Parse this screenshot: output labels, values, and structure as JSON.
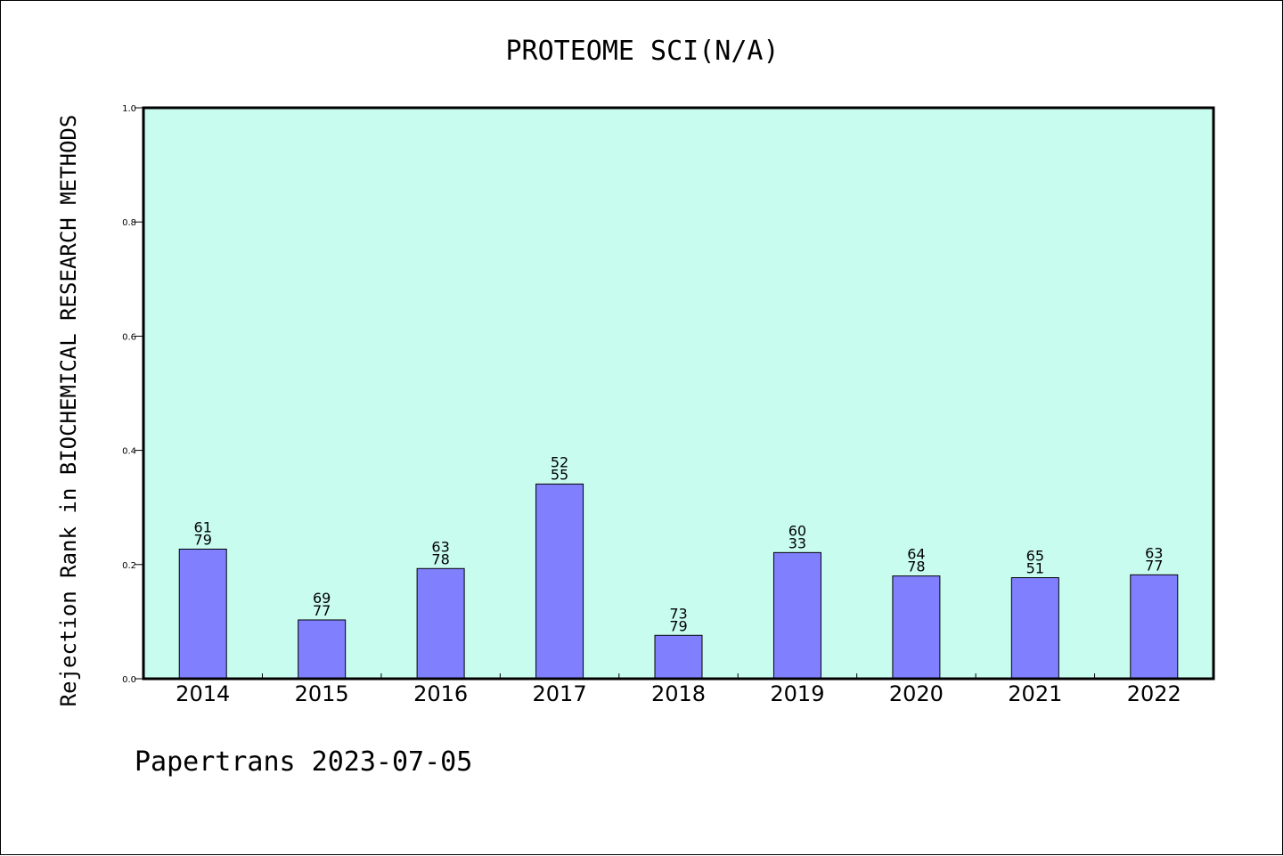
{
  "chart_data": {
    "type": "bar",
    "title": "PROTEOME SCI(N/A)",
    "xlabel": "",
    "ylabel": "Rejection Rank in BIOCHEMICAL RESEARCH METHODS",
    "ylim": [
      0.0,
      1.0
    ],
    "yticks": [
      "0.0",
      "0.2",
      "0.4",
      "0.6",
      "0.8",
      "1.0"
    ],
    "categories": [
      "2014",
      "2015",
      "2016",
      "2017",
      "2018",
      "2019",
      "2020",
      "2021",
      "2022"
    ],
    "values": [
      0.227,
      0.103,
      0.193,
      0.341,
      0.076,
      0.221,
      0.18,
      0.177,
      0.182
    ],
    "labels_top": [
      "61",
      "69",
      "63",
      "52",
      "73",
      "60",
      "64",
      "65",
      "63"
    ],
    "labels_bottom": [
      "79",
      "77",
      "78",
      "55",
      "79",
      "33",
      "78",
      "51",
      "77"
    ],
    "grid": false,
    "colors": {
      "plot_background": "#c8fcee",
      "bar": "#8080ff",
      "bar_edge": "#000000"
    }
  },
  "footer": "Papertrans 2023-07-05"
}
